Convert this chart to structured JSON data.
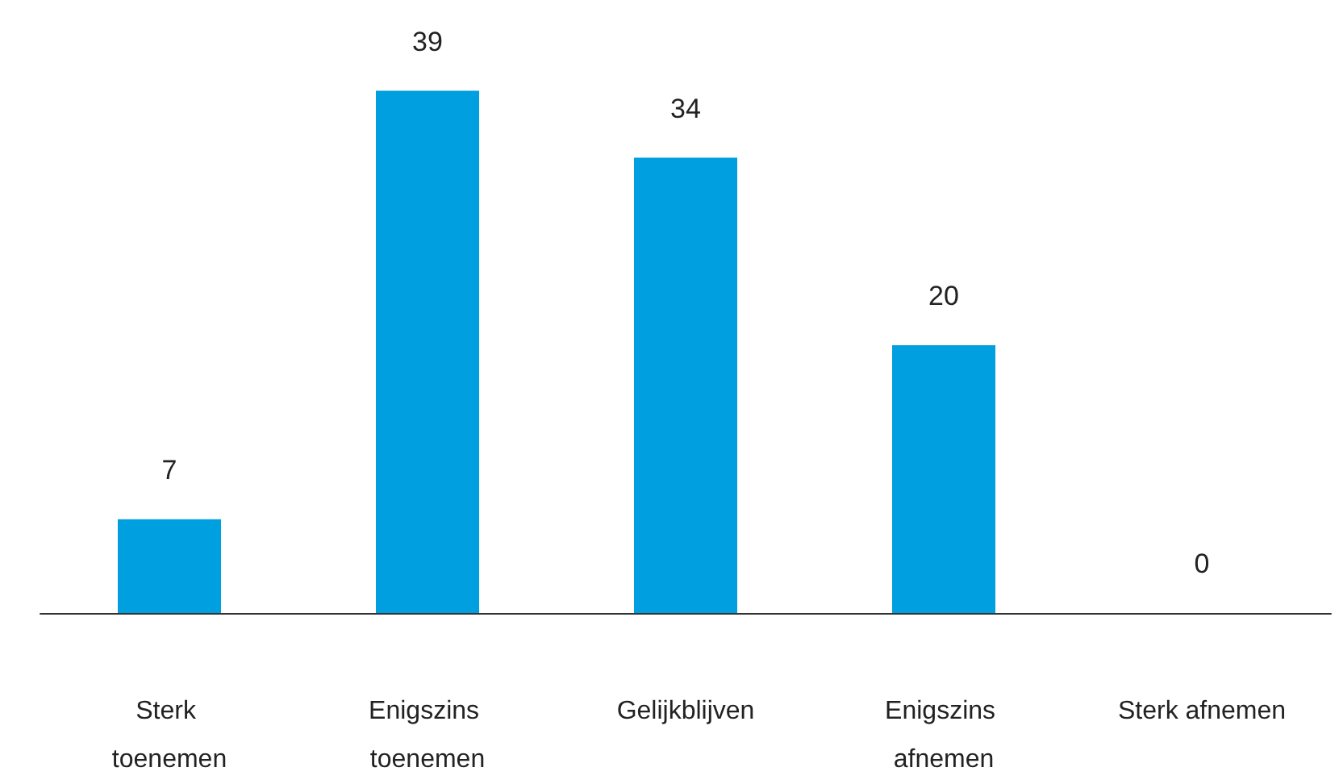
{
  "chart_data": {
    "type": "bar",
    "categories": [
      "Sterk toenemen",
      "Enigszins toenemen",
      "Gelijkblijven",
      "Enigszins afnemen",
      "Sterk afnemen"
    ],
    "values": [
      7,
      39,
      34,
      20,
      0
    ],
    "color": "#009fdf",
    "data_labels": true
  }
}
